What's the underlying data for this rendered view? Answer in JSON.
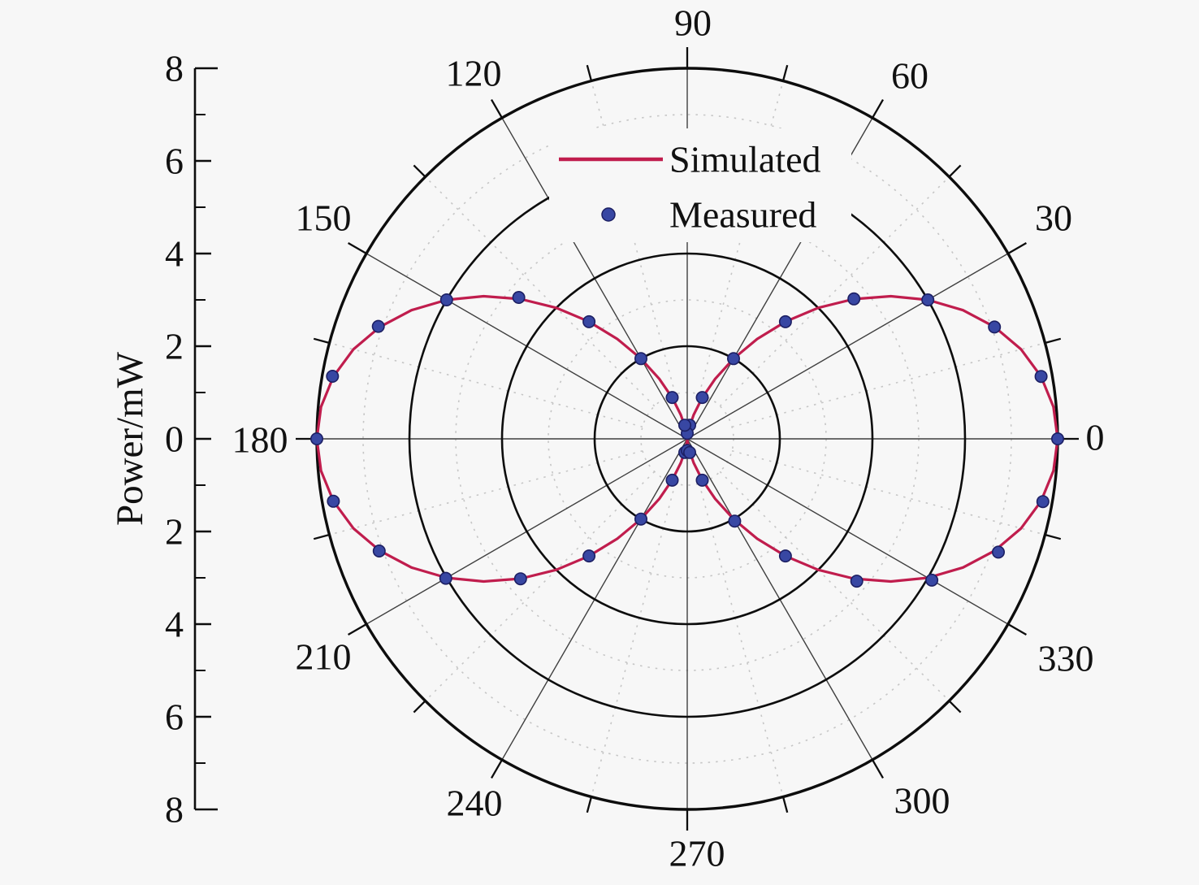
{
  "figure": {
    "y_axis_title": "Power/mW",
    "background_color": "#f7f7f7",
    "radial_tick_labels": [
      "8",
      "6",
      "4",
      "2",
      "0",
      "2",
      "4",
      "6",
      "8"
    ],
    "legend": {
      "items": [
        {
          "label": "Simulated",
          "marker": "line",
          "color": "#c01d4d"
        },
        {
          "label": "Measured",
          "marker": "dot",
          "color": "#3847a3"
        }
      ]
    }
  },
  "chart_data": {
    "type": "line",
    "projection": "polar",
    "title": "",
    "ylabel": "Power/mW",
    "grid": true,
    "legend_position": "inside-upper-center",
    "radial_axis": {
      "min": 0,
      "max": 8,
      "major_tick_values": [
        0,
        2,
        4,
        6,
        8
      ],
      "minor_tick_values": [
        1,
        3,
        5,
        7
      ],
      "tick_label_display": [
        "8",
        "6",
        "4",
        "2",
        "0",
        "2",
        "4",
        "6",
        "8"
      ]
    },
    "angular_axis": {
      "unit": "deg",
      "major_step_deg": 30,
      "minor_step_deg": 15,
      "labels": [
        0,
        30,
        60,
        90,
        120,
        150,
        180,
        210,
        240,
        270,
        300,
        330
      ]
    },
    "series": [
      {
        "name": "Simulated",
        "type": "line",
        "color": "#c01d4d",
        "line_width": 3.2,
        "model": "r = 8·cos²(θ)",
        "theta_start_deg": 0,
        "theta_step_deg": 5,
        "r": [
          8.0,
          7.939,
          7.759,
          7.464,
          7.064,
          6.571,
          6.0,
          5.368,
          4.695,
          4.0,
          3.305,
          2.632,
          2.0,
          1.429,
          0.936,
          0.536,
          0.241,
          0.061,
          0.0,
          0.061,
          0.241,
          0.536,
          0.936,
          1.429,
          2.0,
          2.632,
          3.305,
          4.0,
          4.695,
          5.368,
          6.0,
          6.571,
          7.064,
          7.464,
          7.759,
          7.939,
          8.0,
          7.939,
          7.759,
          7.464,
          7.064,
          6.571,
          6.0,
          5.368,
          4.695,
          4.0,
          3.305,
          2.632,
          2.0,
          1.429,
          0.936,
          0.536,
          0.241,
          0.061,
          0.0,
          0.061,
          0.241,
          0.536,
          0.936,
          1.429,
          2.0,
          2.632,
          3.305,
          4.0,
          4.695,
          5.368,
          6.0,
          6.571,
          7.064,
          7.464,
          7.759,
          7.939,
          8.0
        ]
      },
      {
        "name": "Measured",
        "type": "scatter",
        "color": "#3847a3",
        "edge_color": "#1c1f63",
        "marker_radius_px": 7.2,
        "theta_start_deg": 0,
        "theta_step_deg": 10,
        "r": [
          8.0,
          7.76,
          7.06,
          6.0,
          4.7,
          3.3,
          2.0,
          0.95,
          0.3,
          0.12,
          0.3,
          0.95,
          2.0,
          3.3,
          4.75,
          6.0,
          7.1,
          7.78,
          8.0,
          7.76,
          7.08,
          6.02,
          4.7,
          3.3,
          2.0,
          0.95,
          0.3,
          0.25,
          0.3,
          0.95,
          2.05,
          3.3,
          4.78,
          6.1,
          7.15,
          7.8
        ]
      }
    ]
  }
}
